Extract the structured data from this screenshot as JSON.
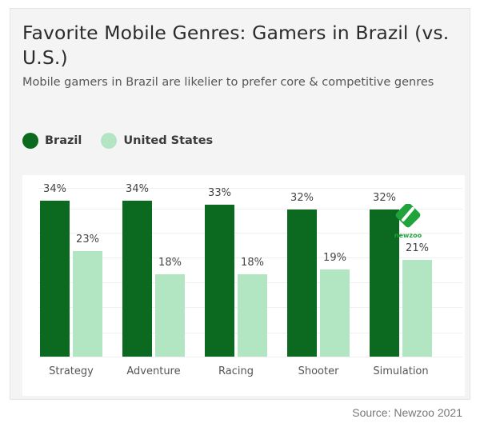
{
  "title": "Favorite Mobile Genres: Gamers in Brazil (vs. U.S.)",
  "subtitle": "Mobile gamers in Brazil are likelier to prefer core & competitive genres",
  "legend": [
    {
      "label": "Brazil",
      "color": "#0b6a1f"
    },
    {
      "label": "United States",
      "color": "#b2e5c2"
    }
  ],
  "source": "Source: Newzoo 2021",
  "watermark": "newzoo",
  "chart_data": {
    "type": "bar",
    "title": "Favorite Mobile Genres: Gamers in Brazil (vs. U.S.)",
    "subtitle": "Mobile gamers in Brazil are likelier to prefer core & competitive genres",
    "categories": [
      "Strategy",
      "Adventure",
      "Racing",
      "Shooter",
      "Simulation"
    ],
    "series": [
      {
        "name": "Brazil",
        "color": "#0b6a1f",
        "values": [
          34,
          34,
          33,
          32,
          32
        ],
        "labels": [
          "34%",
          "34%",
          "33%",
          "32%",
          "32%"
        ]
      },
      {
        "name": "United States",
        "color": "#b2e5c2",
        "values": [
          23,
          18,
          18,
          19,
          21
        ],
        "labels": [
          "23%",
          "18%",
          "18%",
          "19%",
          "21%"
        ]
      }
    ],
    "xlabel": "",
    "ylabel": "",
    "ylim": [
      0,
      37
    ],
    "grid": true,
    "legend_position": "top-left",
    "source": "Source: Newzoo 2021"
  }
}
